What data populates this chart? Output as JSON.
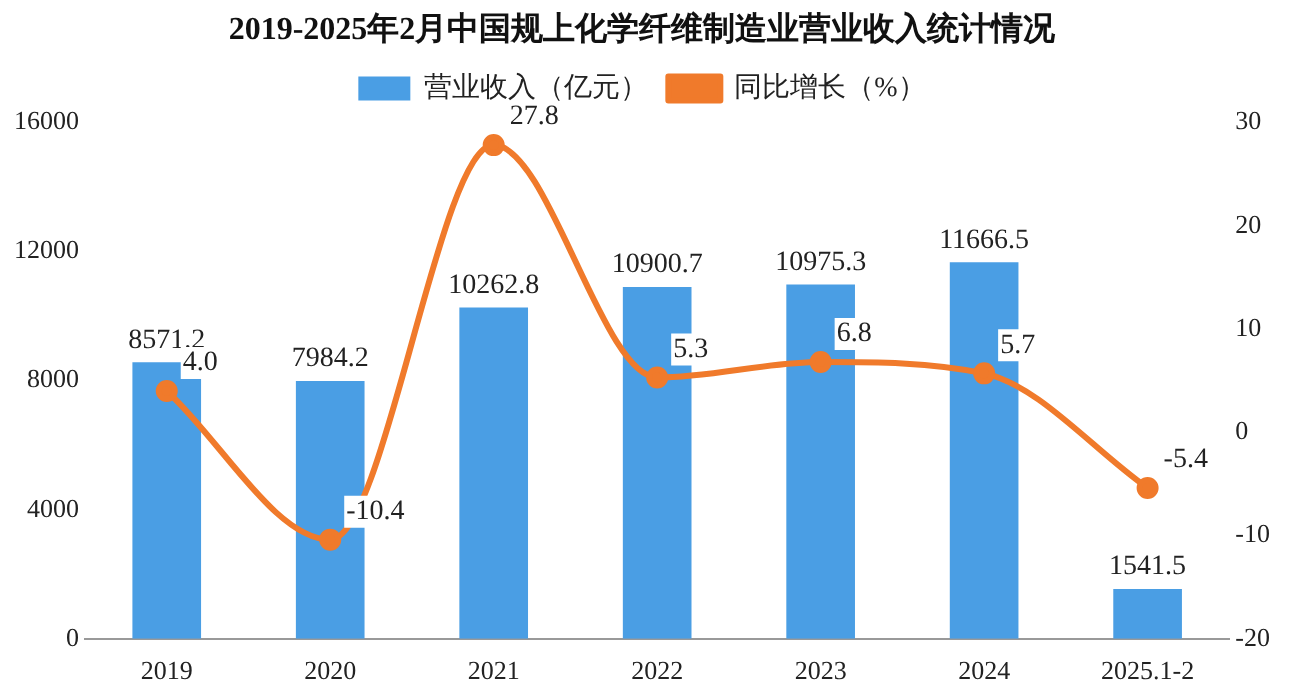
{
  "chart_data": {
    "type": "bar",
    "title": "2019-2025年2月中国规上化学纤维制造业营业收入统计情况",
    "categories": [
      "2019",
      "2020",
      "2021",
      "2022",
      "2023",
      "2024",
      "2025.1-2"
    ],
    "series": [
      {
        "name": "营业收入（亿元）",
        "color": "#4a9ee4",
        "values": [
          8571.2,
          7984.2,
          10262.8,
          10900.7,
          10975.3,
          11666.5,
          1541.5
        ],
        "value_labels": [
          "8571.2",
          "7984.2",
          "10262.8",
          "10900.7",
          "10975.3",
          "11666.5",
          "1541.5"
        ]
      },
      {
        "name": "同比增长（%）",
        "type": "line",
        "axis": "y2",
        "color": "#f07a2b",
        "values": [
          4.0,
          -10.4,
          27.8,
          5.3,
          6.8,
          5.7,
          -5.4
        ],
        "value_labels": [
          "4.0",
          "-10.4",
          "27.8",
          "5.3",
          "6.8",
          "5.7",
          "-5.4"
        ]
      }
    ],
    "ylim": [
      0,
      16000
    ],
    "yticks": [
      0,
      4000,
      8000,
      12000,
      16000
    ],
    "y2lim": [
      -20,
      30
    ],
    "y2ticks": [
      -20,
      -10,
      0,
      10,
      20,
      30
    ],
    "legend": "top",
    "grid": false,
    "marker": "circle"
  }
}
